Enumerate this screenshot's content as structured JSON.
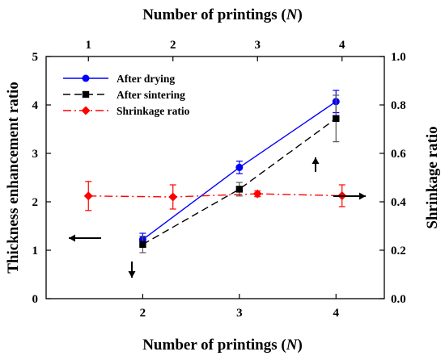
{
  "chart_data": {
    "type": "line",
    "xlabel_bottom": "Number of printings (",
    "xlabel_top": "Number of printings (",
    "xlabel_var": "N",
    "xlabel_close": ")",
    "ylabel_left": "Thickness enhancement ratio",
    "ylabel_right": "Shrinkage ratio",
    "bottom_axis": {
      "range": [
        1.0,
        4.5
      ],
      "ticks": [
        "2",
        "3",
        "4"
      ],
      "tick_values": [
        2,
        3,
        4
      ]
    },
    "top_axis": {
      "range": [
        0.5,
        4.5
      ],
      "ticks": [
        "1",
        "2",
        "3",
        "4"
      ],
      "tick_values": [
        1,
        2,
        3,
        4
      ]
    },
    "left_axis": {
      "range": [
        0,
        5
      ],
      "ticks": [
        "0",
        "1",
        "2",
        "3",
        "4",
        "5"
      ],
      "tick_values": [
        0,
        1,
        2,
        3,
        4,
        5
      ]
    },
    "right_axis": {
      "range": [
        0,
        1
      ],
      "ticks": [
        "0.0",
        "0.2",
        "0.4",
        "0.6",
        "0.8",
        "1.0"
      ],
      "tick_values": [
        0,
        0.2,
        0.4,
        0.6,
        0.8,
        1.0
      ]
    },
    "grid": false,
    "legend_position": "top-left",
    "series": [
      {
        "name": "After drying",
        "axis": "bottom-left",
        "color": "#0000ff",
        "line_style": "solid",
        "marker": "circle",
        "x": [
          2,
          3,
          4
        ],
        "y": [
          1.22,
          2.71,
          4.07
        ],
        "err": [
          0.13,
          0.13,
          0.23
        ]
      },
      {
        "name": "After sintering",
        "axis": "bottom-left",
        "color": "#000000",
        "line_style": "dashed",
        "marker": "square",
        "x": [
          2,
          3,
          4
        ],
        "y": [
          1.12,
          2.26,
          3.72
        ],
        "err": [
          0.17,
          0.14,
          0.48
        ]
      },
      {
        "name": "Shrinkage ratio",
        "axis": "top-right",
        "color": "#ff0000",
        "line_style": "dashdot",
        "marker": "diamond",
        "x": [
          1,
          2,
          3,
          4
        ],
        "y": [
          0.424,
          0.42,
          0.433,
          0.425
        ],
        "err": [
          0.06,
          0.05,
          0.012,
          0.045
        ]
      }
    ],
    "annotations": [
      {
        "name": "left-arrow",
        "glyph": "arrow-left"
      },
      {
        "name": "right-arrow",
        "glyph": "arrow-right"
      },
      {
        "name": "down-arrow",
        "glyph": "arrow-down"
      },
      {
        "name": "up-arrow",
        "glyph": "arrow-up"
      }
    ]
  }
}
